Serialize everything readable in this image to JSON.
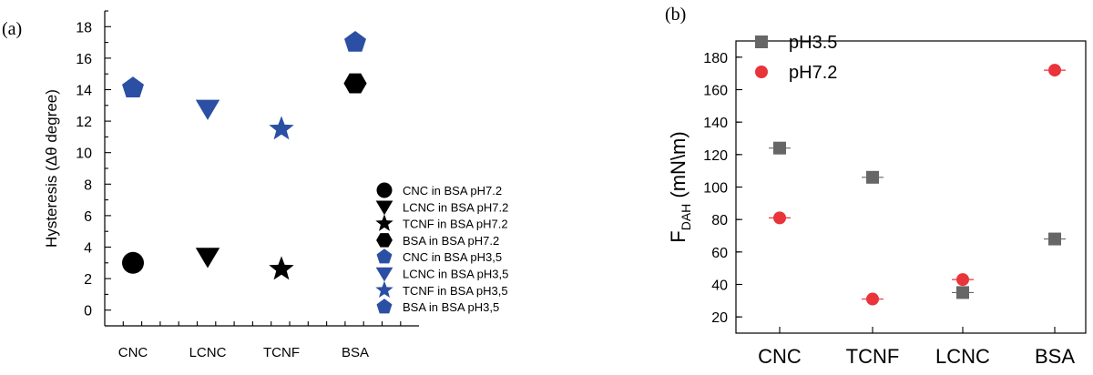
{
  "chart_data": [
    {
      "panel_label": "(a)",
      "type": "scatter",
      "ylabel": "Hysteresis (Δθ degree)",
      "xlabel": "",
      "ylim": [
        -1,
        19
      ],
      "yticks": [
        0,
        2,
        4,
        6,
        8,
        10,
        12,
        14,
        16,
        18
      ],
      "categories": [
        "CNC",
        "LCNC",
        "TCNF",
        "BSA"
      ],
      "series": [
        {
          "name": "CNC in BSA pH7.2",
          "marker": "circle",
          "color": "#000000",
          "points": [
            {
              "x": "CNC",
              "y": 3.0
            }
          ]
        },
        {
          "name": "LCNC in BSA pH7.2",
          "marker": "triangle-down",
          "color": "#000000",
          "points": [
            {
              "x": "LCNC",
              "y": 3.4
            }
          ]
        },
        {
          "name": "TCNF in BSA pH7.2",
          "marker": "star",
          "color": "#000000",
          "points": [
            {
              "x": "TCNF",
              "y": 2.6
            }
          ]
        },
        {
          "name": "BSA in BSA pH7.2",
          "marker": "hexagon",
          "color": "#000000",
          "points": [
            {
              "x": "BSA",
              "y": 14.4
            }
          ]
        },
        {
          "name": "CNC in BSA pH3,5",
          "marker": "pentagon",
          "color": "#2b4fa3",
          "points": [
            {
              "x": "CNC",
              "y": 14.1
            }
          ]
        },
        {
          "name": "LCNC in BSA pH3,5",
          "marker": "triangle-down",
          "color": "#2b4fa3",
          "points": [
            {
              "x": "LCNC",
              "y": 12.8
            }
          ]
        },
        {
          "name": "TCNF in BSA pH3,5",
          "marker": "star",
          "color": "#2b4fa3",
          "points": [
            {
              "x": "TCNF",
              "y": 11.5
            }
          ]
        },
        {
          "name": "BSA in BSA pH3,5",
          "marker": "pentagon",
          "color": "#2b4fa3",
          "points": [
            {
              "x": "BSA",
              "y": 17.0
            }
          ]
        }
      ],
      "legend_position": "lower-right"
    },
    {
      "panel_label": "(b)",
      "type": "scatter",
      "ylabel_main": "F",
      "ylabel_sub": "DAH",
      "ylabel_unit": " (mN\\m)",
      "xlabel": "",
      "ylim": [
        10,
        190
      ],
      "yticks": [
        20,
        40,
        60,
        80,
        100,
        120,
        140,
        160,
        180
      ],
      "categories": [
        "CNC",
        "TCNF",
        "LCNC",
        "BSA"
      ],
      "series": [
        {
          "name": "pH3.5",
          "marker": "square",
          "color": "#666666",
          "values": [
            124,
            106,
            35,
            68
          ]
        },
        {
          "name": "pH7.2",
          "marker": "circle",
          "color": "#e8343a",
          "values": [
            81,
            31,
            43,
            172
          ]
        }
      ],
      "legend_position": "top-left"
    }
  ]
}
